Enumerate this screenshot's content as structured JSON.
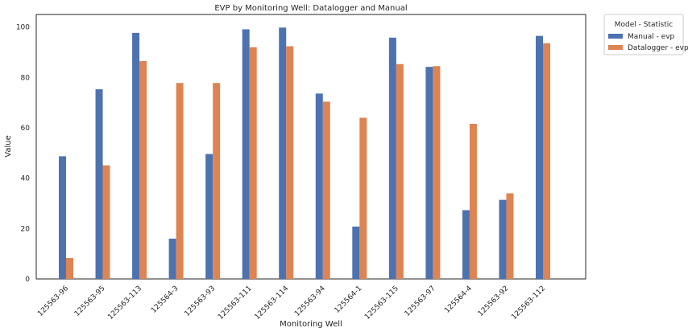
{
  "chart_data": {
    "type": "bar",
    "title": "EVP by Monitoring Well: Datalogger and Manual",
    "xlabel": "Monitoring Well",
    "ylabel": "Value",
    "ylim": [
      0,
      105
    ],
    "yticks": [
      0,
      20,
      40,
      60,
      80,
      100
    ],
    "grid": false,
    "legend": {
      "title": "Model - Statistic",
      "placement": "outside-top-right"
    },
    "categories": [
      "125563-96",
      "125563-95",
      "125563-113",
      "125564-3",
      "125563-93",
      "125563-111",
      "125563-114",
      "125563-94",
      "125564-1",
      "125563-115",
      "125563-97",
      "125564-4",
      "125563-92",
      "125563-112"
    ],
    "series": [
      {
        "name": "Manual - evp",
        "color": "#4c72b0",
        "values": [
          48.7,
          75.3,
          97.7,
          16.0,
          49.6,
          99.1,
          99.8,
          73.6,
          20.8,
          95.8,
          84.2,
          27.3,
          31.4,
          96.5
        ]
      },
      {
        "name": "Datalogger - evp",
        "color": "#dd8452",
        "values": [
          8.3,
          45.1,
          86.5,
          77.8,
          77.8,
          92.0,
          92.4,
          70.4,
          64.0,
          85.3,
          84.5,
          61.6,
          34.0,
          93.6
        ]
      }
    ]
  }
}
